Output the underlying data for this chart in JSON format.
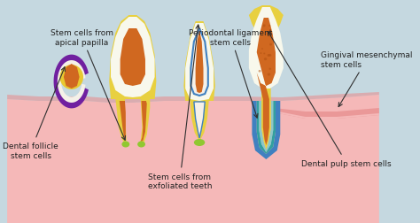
{
  "bg_color": "#c5d8e0",
  "gum_color": "#f5b8b8",
  "gum_dark_color": "#e89090",
  "enamel_color": "#f8f8ec",
  "dentin_color": "#e8d040",
  "pulp_color": "#d06820",
  "follicle_purple": "#7020a0",
  "follicle_white": "#f5f0e8",
  "follicle_yellow": "#e8c830",
  "green_tip": "#90c830",
  "blue_line": "#4080c0",
  "teal_line": "#30a0a0",
  "cyan_line": "#60d0d0",
  "labels": {
    "dental_follicle": "Dental follicle\nstem cells",
    "apical_papilla": "Stem cells from\napical papilla",
    "exfoliated": "Stem cells from\nexfoliated teeth",
    "dental_pulp": "Dental pulp stem cells",
    "periodontal": "Periodontal ligament\nstem cells",
    "gingival": "Gingival mesenchymal\nstem cells"
  },
  "font_size": 6.5,
  "arrow_color": "#303030"
}
